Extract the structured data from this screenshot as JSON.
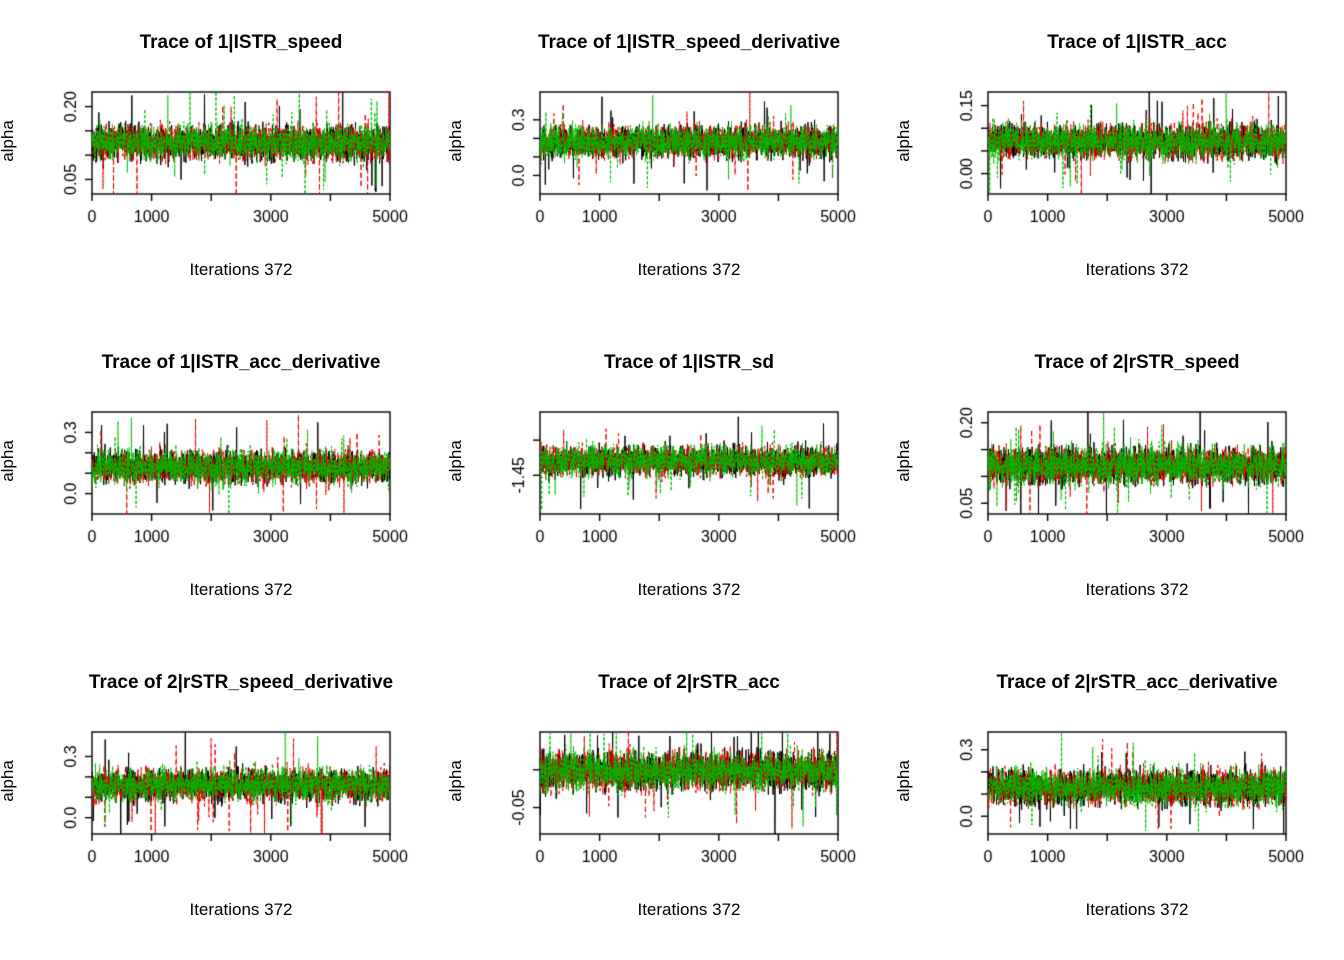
{
  "page": {
    "background": "#ffffff"
  },
  "colors": {
    "chain1": "#000000",
    "chain2": "#e60000",
    "chain3": "#00bb00",
    "axis": "#000000",
    "plot_background": "#ffffff"
  },
  "chart_data": [
    {
      "type": "line",
      "title": "Trace of 1|ISTR_speed",
      "xlabel": "Iterations 372",
      "ylabel": "alpha",
      "xlim": [
        0,
        5000
      ],
      "x_ticks": [
        0,
        1000,
        2000,
        3000,
        4000,
        5000
      ],
      "x_tick_labels": [
        "0",
        "1000",
        "",
        "3000",
        "",
        "5000"
      ],
      "ylim": [
        0.02,
        0.23
      ],
      "y_ticks": [
        0.05,
        0.1,
        0.15,
        0.2
      ],
      "y_tick_labels": [
        "0.05",
        "",
        "",
        "0.20"
      ],
      "n_iterations": 5000,
      "trace_summary": {
        "center": 0.125,
        "spread": 0.032
      },
      "series": [
        {
          "name": "chain 1",
          "color": "#000000"
        },
        {
          "name": "chain 2",
          "color": "#e60000"
        },
        {
          "name": "chain 3",
          "color": "#00bb00"
        }
      ]
    },
    {
      "type": "line",
      "title": "Trace of 1|ISTR_speed_derivative",
      "xlabel": "Iterations 372",
      "ylabel": "alpha",
      "xlim": [
        0,
        5000
      ],
      "x_ticks": [
        0,
        1000,
        2000,
        3000,
        4000,
        5000
      ],
      "x_tick_labels": [
        "0",
        "1000",
        "",
        "3000",
        "",
        "5000"
      ],
      "ylim": [
        -0.1,
        0.45
      ],
      "y_ticks": [
        0.0,
        0.1,
        0.2,
        0.3
      ],
      "y_tick_labels": [
        "0.0",
        "",
        "",
        "0.3"
      ],
      "n_iterations": 5000,
      "trace_summary": {
        "center": 0.18,
        "spread": 0.075
      },
      "series": [
        {
          "name": "chain 1",
          "color": "#000000"
        },
        {
          "name": "chain 2",
          "color": "#e60000"
        },
        {
          "name": "chain 3",
          "color": "#00bb00"
        }
      ]
    },
    {
      "type": "line",
      "title": "Trace of 1|ISTR_acc",
      "xlabel": "Iterations 372",
      "ylabel": "alpha",
      "xlim": [
        0,
        5000
      ],
      "x_ticks": [
        0,
        1000,
        2000,
        3000,
        4000,
        5000
      ],
      "x_tick_labels": [
        "0",
        "1000",
        "",
        "3000",
        "",
        "5000"
      ],
      "ylim": [
        -0.045,
        0.18
      ],
      "y_ticks": [
        0.0,
        0.05,
        0.1,
        0.15
      ],
      "y_tick_labels": [
        "0.00",
        "",
        "",
        "0.15"
      ],
      "n_iterations": 5000,
      "trace_summary": {
        "center": 0.07,
        "spread": 0.033
      },
      "series": [
        {
          "name": "chain 1",
          "color": "#000000"
        },
        {
          "name": "chain 2",
          "color": "#e60000"
        },
        {
          "name": "chain 3",
          "color": "#00bb00"
        }
      ]
    },
    {
      "type": "line",
      "title": "Trace of 1|ISTR_acc_derivative",
      "xlabel": "Iterations 372",
      "ylabel": "alpha",
      "xlim": [
        0,
        5000
      ],
      "x_ticks": [
        0,
        1000,
        2000,
        3000,
        4000,
        5000
      ],
      "x_tick_labels": [
        "0",
        "1000",
        "",
        "3000",
        "",
        "5000"
      ],
      "ylim": [
        -0.1,
        0.4
      ],
      "y_ticks": [
        0.0,
        0.1,
        0.2,
        0.3
      ],
      "y_tick_labels": [
        "0.0",
        "",
        "",
        "0.3"
      ],
      "n_iterations": 5000,
      "trace_summary": {
        "center": 0.13,
        "spread": 0.07
      },
      "series": [
        {
          "name": "chain 1",
          "color": "#000000"
        },
        {
          "name": "chain 2",
          "color": "#e60000"
        },
        {
          "name": "chain 3",
          "color": "#00bb00"
        }
      ]
    },
    {
      "type": "line",
      "title": "Trace of 1|ISTR_sd",
      "xlabel": "Iterations 372",
      "ylabel": "alpha",
      "xlim": [
        0,
        5000
      ],
      "x_ticks": [
        0,
        1000,
        2000,
        3000,
        4000,
        5000
      ],
      "x_tick_labels": [
        "0",
        "1000",
        "",
        "3000",
        "",
        "5000"
      ],
      "ylim": [
        -1.56,
        -1.27
      ],
      "y_ticks": [
        -1.45,
        -1.35
      ],
      "y_tick_labels": [
        "-1.45",
        ""
      ],
      "n_iterations": 5000,
      "trace_summary": {
        "center": -1.41,
        "spread": 0.037
      },
      "series": [
        {
          "name": "chain 1",
          "color": "#000000"
        },
        {
          "name": "chain 2",
          "color": "#e60000"
        },
        {
          "name": "chain 3",
          "color": "#00bb00"
        }
      ]
    },
    {
      "type": "line",
      "title": "Trace of 2|rSTR_speed",
      "xlabel": "Iterations 372",
      "ylabel": "alpha",
      "xlim": [
        0,
        5000
      ],
      "x_ticks": [
        0,
        1000,
        2000,
        3000,
        4000,
        5000
      ],
      "x_tick_labels": [
        "0",
        "1000",
        "",
        "3000",
        "",
        "5000"
      ],
      "ylim": [
        0.03,
        0.22
      ],
      "y_ticks": [
        0.05,
        0.1,
        0.15,
        0.2
      ],
      "y_tick_labels": [
        "0.05",
        "",
        "",
        "0.20"
      ],
      "n_iterations": 5000,
      "trace_summary": {
        "center": 0.12,
        "spread": 0.03
      },
      "series": [
        {
          "name": "chain 1",
          "color": "#000000"
        },
        {
          "name": "chain 2",
          "color": "#e60000"
        },
        {
          "name": "chain 3",
          "color": "#00bb00"
        }
      ]
    },
    {
      "type": "line",
      "title": "Trace of 2|rSTR_speed_derivative",
      "xlabel": "Iterations 372",
      "ylabel": "alpha",
      "xlim": [
        0,
        5000
      ],
      "x_ticks": [
        0,
        1000,
        2000,
        3000,
        4000,
        5000
      ],
      "x_tick_labels": [
        "0",
        "1000",
        "",
        "3000",
        "",
        "5000"
      ],
      "ylim": [
        -0.08,
        0.42
      ],
      "y_ticks": [
        0.0,
        0.1,
        0.2,
        0.3
      ],
      "y_tick_labels": [
        "0.0",
        "",
        "",
        "0.3"
      ],
      "n_iterations": 5000,
      "trace_summary": {
        "center": 0.16,
        "spread": 0.07
      },
      "series": [
        {
          "name": "chain 1",
          "color": "#000000"
        },
        {
          "name": "chain 2",
          "color": "#e60000"
        },
        {
          "name": "chain 3",
          "color": "#00bb00"
        }
      ]
    },
    {
      "type": "line",
      "title": "Trace of 2|rSTR_acc",
      "xlabel": "Iterations 372",
      "ylabel": "alpha",
      "xlim": [
        0,
        5000
      ],
      "x_ticks": [
        0,
        1000,
        2000,
        3000,
        4000,
        5000
      ],
      "x_tick_labels": [
        "0",
        "1000",
        "",
        "3000",
        "",
        "5000"
      ],
      "ylim": [
        -0.085,
        0.05
      ],
      "y_ticks": [
        -0.05,
        0.0
      ],
      "y_tick_labels": [
        "-0.05",
        ""
      ],
      "n_iterations": 5000,
      "trace_summary": {
        "center": -0.002,
        "spread": 0.022
      },
      "series": [
        {
          "name": "chain 1",
          "color": "#000000"
        },
        {
          "name": "chain 2",
          "color": "#e60000"
        },
        {
          "name": "chain 3",
          "color": "#00bb00"
        }
      ]
    },
    {
      "type": "line",
      "title": "Trace of 2|rSTR_acc_derivative",
      "xlabel": "Iterations 372",
      "ylabel": "alpha",
      "xlim": [
        0,
        5000
      ],
      "x_ticks": [
        0,
        1000,
        2000,
        3000,
        4000,
        5000
      ],
      "x_tick_labels": [
        "0",
        "1000",
        "",
        "3000",
        "",
        "5000"
      ],
      "ylim": [
        -0.08,
        0.38
      ],
      "y_ticks": [
        0.0,
        0.1,
        0.2,
        0.3
      ],
      "y_tick_labels": [
        "0.0",
        "",
        "",
        "0.3"
      ],
      "n_iterations": 5000,
      "trace_summary": {
        "center": 0.13,
        "spread": 0.07
      },
      "series": [
        {
          "name": "chain 1",
          "color": "#000000"
        },
        {
          "name": "chain 2",
          "color": "#e60000"
        },
        {
          "name": "chain 3",
          "color": "#00bb00"
        }
      ]
    }
  ]
}
